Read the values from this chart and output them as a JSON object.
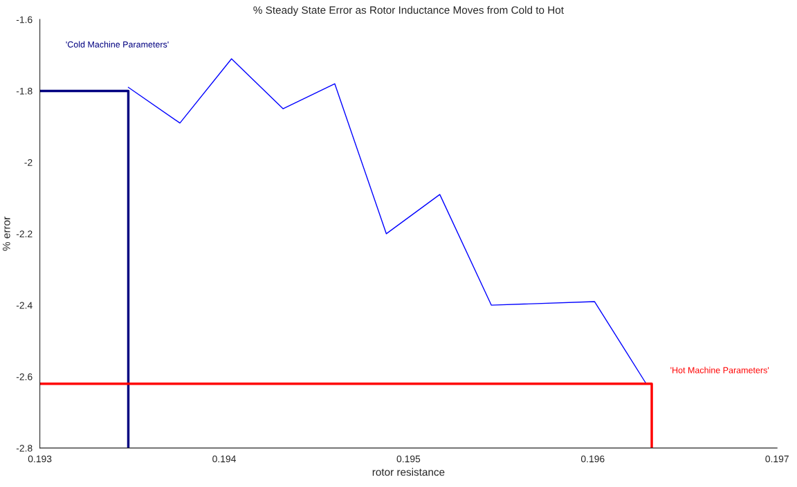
{
  "chart_data": {
    "type": "line",
    "title": "% Steady State Error as Rotor Inductance Moves from Cold to Hot",
    "xlabel": "rotor resistance",
    "ylabel": "% error",
    "series": [
      {
        "color": "#0000ff",
        "x": [
          0.19348,
          0.19376,
          0.19404,
          0.19432,
          0.1946,
          0.19488,
          0.19517,
          0.19545,
          0.19601,
          0.19629
        ],
        "values": [
          -1.79,
          -1.89,
          -1.71,
          -1.85,
          -1.78,
          -2.2,
          -2.09,
          -2.4,
          -2.39,
          -2.62
        ]
      },
      {
        "color": "#000080",
        "x": [
          0.193,
          0.19348,
          0.19348
        ],
        "values": [
          -1.8,
          -1.8,
          -2.8
        ]
      },
      {
        "color": "#ff0000",
        "x": [
          0.193,
          0.19632,
          0.19632
        ],
        "values": [
          -2.62,
          -2.62,
          -2.8
        ]
      }
    ],
    "annotations": [
      "'Cold Machine Parameters'",
      "'Hot Machine Parameters'"
    ],
    "xlim": [
      0.193,
      0.197
    ],
    "xticks": [
      0.193,
      0.194,
      0.195,
      0.196,
      0.197
    ],
    "ylim": [
      -2.8,
      -1.6
    ],
    "yticks": [
      -2.8,
      -2.6,
      -2.4,
      -2.2,
      -2,
      -1.8,
      -1.6
    ],
    "grid": false,
    "legend": false,
    "marker": "none",
    "line_style": "solid"
  }
}
